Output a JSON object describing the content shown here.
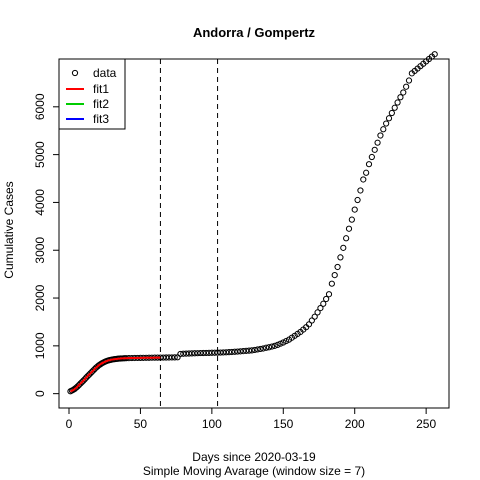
{
  "chart_data": {
    "type": "scatter",
    "title": "Andorra / Gompertz",
    "xlabel": "Days since 2020-03-19",
    "subtitle": "Simple Moving Avarage (window size = 7)",
    "ylabel": "Cumulative Cases",
    "xlim": [
      -7,
      266
    ],
    "ylim": [
      -300,
      7000
    ],
    "x_ticks": [
      0,
      50,
      100,
      150,
      200,
      250
    ],
    "y_ticks": [
      0,
      1000,
      2000,
      3000,
      4000,
      5000,
      6000
    ],
    "vlines": [
      64,
      104
    ],
    "legend": {
      "position": "top-left",
      "entries": [
        {
          "label": "data",
          "kind": "point",
          "color": "#000000"
        },
        {
          "label": "fit1",
          "kind": "line",
          "color": "#ff0000"
        },
        {
          "label": "fit2",
          "kind": "line",
          "color": "#00cc00"
        },
        {
          "label": "fit3",
          "kind": "line",
          "color": "#0000ff"
        }
      ]
    },
    "series": [
      {
        "name": "data",
        "style": "points",
        "x": [
          1,
          2,
          3,
          4,
          5,
          6,
          7,
          8,
          9,
          10,
          11,
          12,
          13,
          14,
          15,
          16,
          17,
          18,
          19,
          20,
          21,
          22,
          23,
          24,
          25,
          26,
          27,
          28,
          29,
          30,
          31,
          32,
          33,
          34,
          35,
          36,
          37,
          38,
          39,
          40,
          42,
          44,
          46,
          48,
          50,
          52,
          54,
          56,
          58,
          60,
          62,
          64,
          66,
          68,
          70,
          72,
          74,
          76,
          78,
          80,
          82,
          84,
          86,
          88,
          90,
          92,
          94,
          96,
          98,
          100,
          102,
          104,
          106,
          108,
          110,
          112,
          114,
          116,
          118,
          120,
          122,
          124,
          126,
          128,
          130,
          132,
          134,
          136,
          138,
          140,
          142,
          144,
          146,
          148,
          150,
          152,
          154,
          156,
          158,
          160,
          162,
          164,
          166,
          168,
          170,
          172,
          174,
          176,
          178,
          180,
          182,
          184,
          186,
          188,
          190,
          192,
          194,
          196,
          198,
          200,
          202,
          204,
          206,
          208,
          210,
          212,
          214,
          216,
          218,
          220,
          222,
          224,
          226,
          228,
          230,
          232,
          234,
          236,
          238,
          240,
          242,
          244,
          246,
          248,
          250,
          252,
          254,
          256
        ],
        "y": [
          50,
          65,
          80,
          100,
          125,
          150,
          180,
          210,
          240,
          270,
          300,
          335,
          365,
          395,
          425,
          455,
          485,
          515,
          545,
          570,
          595,
          615,
          635,
          650,
          665,
          678,
          690,
          698,
          705,
          712,
          718,
          722,
          726,
          730,
          733,
          735,
          737,
          739,
          741,
          742,
          744,
          745,
          746,
          747,
          748,
          749,
          750,
          751,
          752,
          753,
          753,
          754,
          755,
          756,
          757,
          758,
          759,
          760,
          830,
          835,
          838,
          840,
          842,
          845,
          847,
          849,
          850,
          852,
          853,
          855,
          856,
          858,
          860,
          862,
          865,
          868,
          872,
          876,
          880,
          885,
          890,
          895,
          900,
          905,
          915,
          925,
          935,
          945,
          960,
          970,
          985,
          1000,
          1020,
          1045,
          1070,
          1100,
          1130,
          1170,
          1210,
          1250,
          1290,
          1340,
          1390,
          1450,
          1530,
          1610,
          1700,
          1790,
          1880,
          1980,
          2080,
          2300,
          2480,
          2650,
          2850,
          3050,
          3250,
          3450,
          3640,
          3850,
          4050,
          4250,
          4480,
          4620,
          4800,
          4950,
          5100,
          5250,
          5400,
          5530,
          5650,
          5760,
          5870,
          5980,
          6090,
          6200,
          6300,
          6420,
          6550,
          6700,
          6750,
          6800,
          6850,
          6900,
          6950,
          7000,
          7050,
          7100
        ],
        "color": "#000000"
      },
      {
        "name": "fit1",
        "style": "line",
        "x": [
          1,
          3,
          5,
          7,
          9,
          11,
          13,
          15,
          17,
          19,
          21,
          23,
          25,
          27,
          29,
          31,
          33,
          35,
          37,
          39,
          41,
          43,
          45,
          47,
          49,
          51,
          53,
          55,
          57,
          59,
          61,
          63,
          64
        ],
        "y": [
          45,
          75,
          120,
          180,
          240,
          300,
          365,
          425,
          485,
          545,
          595,
          635,
          665,
          690,
          705,
          718,
          726,
          733,
          737,
          741,
          743,
          745,
          746,
          747,
          748,
          749,
          750,
          751,
          752,
          752,
          753,
          753,
          754
        ],
        "color": "#ff0000"
      }
    ]
  }
}
